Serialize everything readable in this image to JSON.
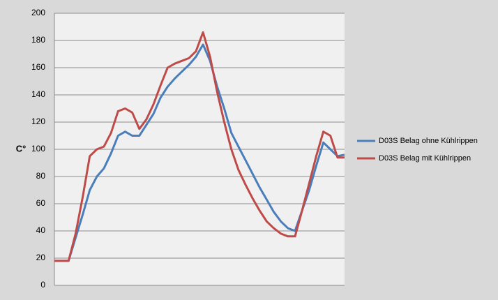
{
  "chart_data": {
    "type": "line",
    "y_label": "C°",
    "ylim": [
      0,
      200
    ],
    "yticks": [
      0,
      20,
      40,
      60,
      80,
      100,
      120,
      140,
      160,
      180,
      200
    ],
    "grid": true,
    "legend": "right",
    "series": [
      {
        "name": "D03S Belag ohne Kühlrippen",
        "color": "#4a7ebb",
        "values": [
          18,
          18,
          18,
          35,
          52,
          70,
          80,
          86,
          97,
          110,
          113,
          110,
          110,
          118,
          126,
          138,
          146,
          152,
          157,
          162,
          168,
          177,
          165,
          146,
          130,
          112,
          102,
          92,
          82,
          72,
          63,
          54,
          47,
          42,
          40,
          55,
          70,
          88,
          105,
          100,
          95,
          96
        ]
      },
      {
        "name": "D03S Belag mit  Kühlrippen",
        "color": "#be4b48",
        "values": [
          18,
          18,
          18,
          38,
          65,
          95,
          100,
          102,
          112,
          128,
          130,
          127,
          115,
          122,
          133,
          147,
          160,
          163,
          165,
          167,
          172,
          186,
          168,
          142,
          120,
          100,
          85,
          74,
          64,
          55,
          47,
          42,
          38,
          36,
          36,
          55,
          75,
          95,
          113,
          110,
          94,
          94
        ]
      }
    ]
  }
}
